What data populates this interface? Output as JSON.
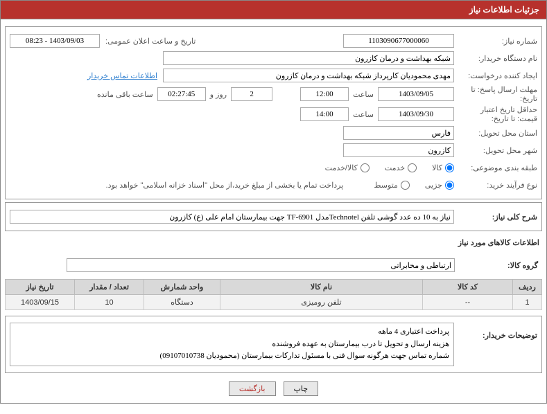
{
  "header": "جزئیات اطلاعات نیاز",
  "lbl_need_no": "شماره نیاز:",
  "val_need_no": "1103090677000060",
  "lbl_announce": "تاریخ و ساعت اعلان عمومی:",
  "val_announce": "1403/09/03 - 08:23",
  "lbl_buyer": "نام دستگاه خریدار:",
  "val_buyer": "شبکه بهداشت و درمان کازرون",
  "lbl_requester": "ایجاد کننده درخواست:",
  "val_requester": "مهدی محمودیان کارپرداز شبکه بهداشت و درمان کازرون",
  "link_contact": "اطلاعات تماس خریدار",
  "lbl_deadline": "مهلت ارسال پاسخ: تا تاریخ:",
  "val_deadline_date": "1403/09/05",
  "lbl_hour": "ساعت",
  "val_deadline_hour": "12:00",
  "val_days": "2",
  "txt_days_and": "روز و",
  "val_countdown": "02:27:45",
  "txt_remaining": "ساعت باقی مانده",
  "lbl_min_valid": "حداقل تاریخ اعتبار قیمت: تا تاریخ:",
  "val_min_valid_date": "1403/09/30",
  "val_min_valid_hour": "14:00",
  "lbl_province": "استان محل تحویل:",
  "val_province": "فارس",
  "lbl_city": "شهر محل تحویل:",
  "val_city": "کازرون",
  "lbl_category": "طبقه بندی موضوعی:",
  "radio_goods": "کالا",
  "radio_service": "خدمت",
  "radio_both": "کالا/خدمت",
  "lbl_process": "نوع فرآیند خرید:",
  "radio_partial": "جزیی",
  "radio_medium": "متوسط",
  "txt_payment_note": "پرداخت تمام یا بخشی از مبلغ خرید،از محل \"اسناد خزانه اسلامی\" خواهد بود.",
  "lbl_summary": "شرح کلی نیاز:",
  "val_summary": "نیاز به 10 ده عدد گوشی تلفن Technotelمدل TF-6901 جهت بیمارستان امام علی (ع) کازرون",
  "section_goods_info": "اطلاعات کالاهای مورد نیاز",
  "lbl_goods_group": "گروه کالا:",
  "val_goods_group": "ارتباطی و مخابراتی",
  "col_row": "ردیف",
  "col_code": "کد کالا",
  "col_name": "نام کالا",
  "col_unit": "واحد شمارش",
  "col_qty": "تعداد / مقدار",
  "col_date": "تاریخ نیاز",
  "rows": [
    {
      "n": "1",
      "code": "--",
      "name": "تلفن رومیزی",
      "unit": "دستگاه",
      "qty": "10",
      "date": "1403/09/15"
    }
  ],
  "lbl_buyer_notes": "توضیحات خریدار:",
  "val_buyer_notes_1": "پرداخت اعتباری 4 ماهه",
  "val_buyer_notes_2": "هزینه ارسال و تحویل تا درب بیمارستان به عهده فروشنده",
  "val_buyer_notes_3": "شماره تماس جهت هرگونه سوال فنی با مسئول تدارکات بیمارستان (محمودیان 09107010738)",
  "btn_print": "چاپ",
  "btn_back": "بازگشت"
}
